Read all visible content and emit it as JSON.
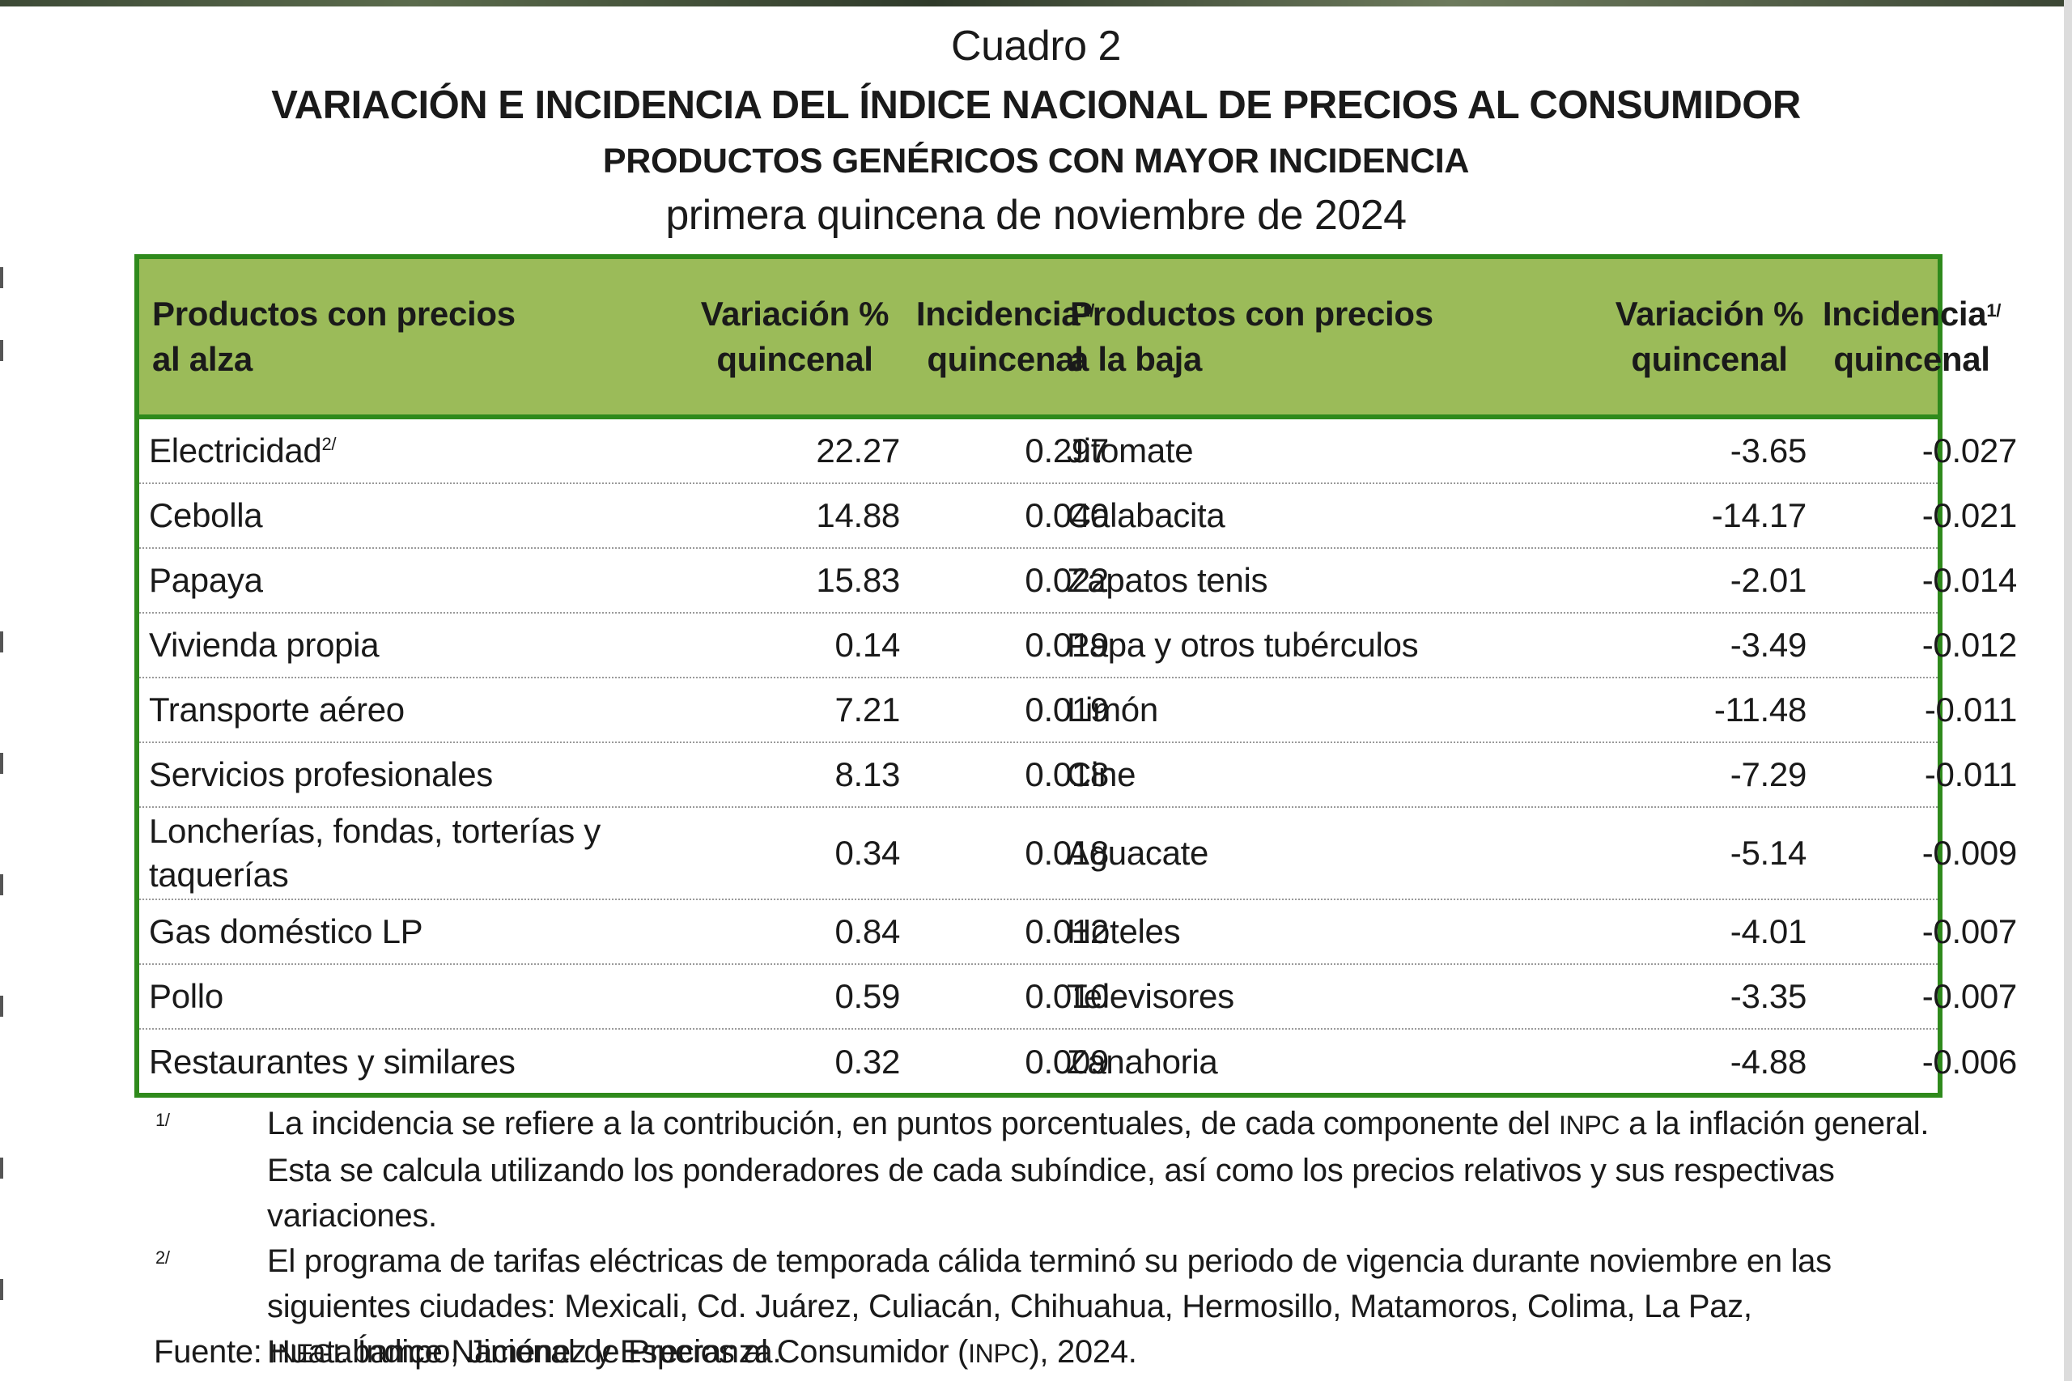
{
  "header": {
    "cuadro": "Cuadro 2",
    "title": "VARIACIÓN E INCIDENCIA DEL ÍNDICE NACIONAL DE PRECIOS AL CONSUMIDOR",
    "subtitle": "PRODUCTOS GENÉRICOS CON MAYOR INCIDENCIA",
    "period": "primera quincena de noviembre de 2024"
  },
  "table": {
    "columns": {
      "up_name_1": "Productos con precios",
      "up_name_2": "al alza",
      "var_1": "Variación %",
      "var_2": "quincenal",
      "inc_1": "Incidencia",
      "inc_sup": "1/",
      "inc_2": "quincenal",
      "down_name_1": "Productos con precios",
      "down_name_2": "a la baja"
    },
    "rows": [
      {
        "up": "Electricidad",
        "up_sup": "2/",
        "up_var": "22.27",
        "up_inc": "0.297",
        "down": "Jitomate",
        "down_var": "-3.65",
        "down_inc": "-0.027"
      },
      {
        "up": "Cebolla",
        "up_var": "14.88",
        "up_inc": "0.040",
        "down": "Calabacita",
        "down_var": "-14.17",
        "down_inc": "-0.021"
      },
      {
        "up": "Papaya",
        "up_var": "15.83",
        "up_inc": "0.022",
        "down": "Zapatos tenis",
        "down_var": "-2.01",
        "down_inc": "-0.014"
      },
      {
        "up": "Vivienda propia",
        "up_var": "0.14",
        "up_inc": "0.019",
        "down": "Papa y otros tubérculos",
        "down_var": "-3.49",
        "down_inc": "-0.012"
      },
      {
        "up": "Transporte aéreo",
        "up_var": "7.21",
        "up_inc": "0.019",
        "down": "Limón",
        "down_var": "-11.48",
        "down_inc": "-0.011"
      },
      {
        "up": "Servicios profesionales",
        "up_var": "8.13",
        "up_inc": "0.018",
        "down": "Cine",
        "down_var": "-7.29",
        "down_inc": "-0.011"
      },
      {
        "up": "Loncherías, fondas, torterías y taquerías",
        "up_var": "0.34",
        "up_inc": "0.018",
        "down": "Aguacate",
        "down_var": "-5.14",
        "down_inc": "-0.009"
      },
      {
        "up": "Gas doméstico LP",
        "up_var": "0.84",
        "up_inc": "0.012",
        "down": "Hoteles",
        "down_var": "-4.01",
        "down_inc": "-0.007"
      },
      {
        "up": "Pollo",
        "up_var": "0.59",
        "up_inc": "0.010",
        "down": "Televisores",
        "down_var": "-3.35",
        "down_inc": "-0.007"
      },
      {
        "up": "Restaurantes y similares",
        "up_var": "0.32",
        "up_inc": "0.009",
        "down": "Zanahoria",
        "down_var": "-4.88",
        "down_inc": "-0.006"
      }
    ]
  },
  "notes": {
    "n1_mark": "1/",
    "n1_a": "La incidencia se refiere a la contribución, en puntos porcentuales, de cada componente del ",
    "n1_sc": "INPC",
    "n1_b": " a la inflación general. Esta se calcula utilizando los ponderadores de cada subíndice, así como los precios relativos y sus respectivas variaciones.",
    "n2_mark": "2/",
    "n2": "El programa de tarifas eléctricas de temporada cálida terminó su periodo de vigencia durante noviembre en las siguientes ciudades: Mexicali, Cd. Juárez, Culiacán, Chihuahua, Hermosillo, Matamoros, Colima, La Paz, Huatabampo, Jiménez y Esperanza."
  },
  "source": {
    "label": "Fuente: ",
    "org": "INEGI",
    "text_a": ". Índice Nacional de Precios al Consumidor (",
    "abbr": "INPC",
    "text_b": "), 2024."
  },
  "colors": {
    "header_fill": "#9bbb59",
    "border": "#2f8a1c"
  }
}
